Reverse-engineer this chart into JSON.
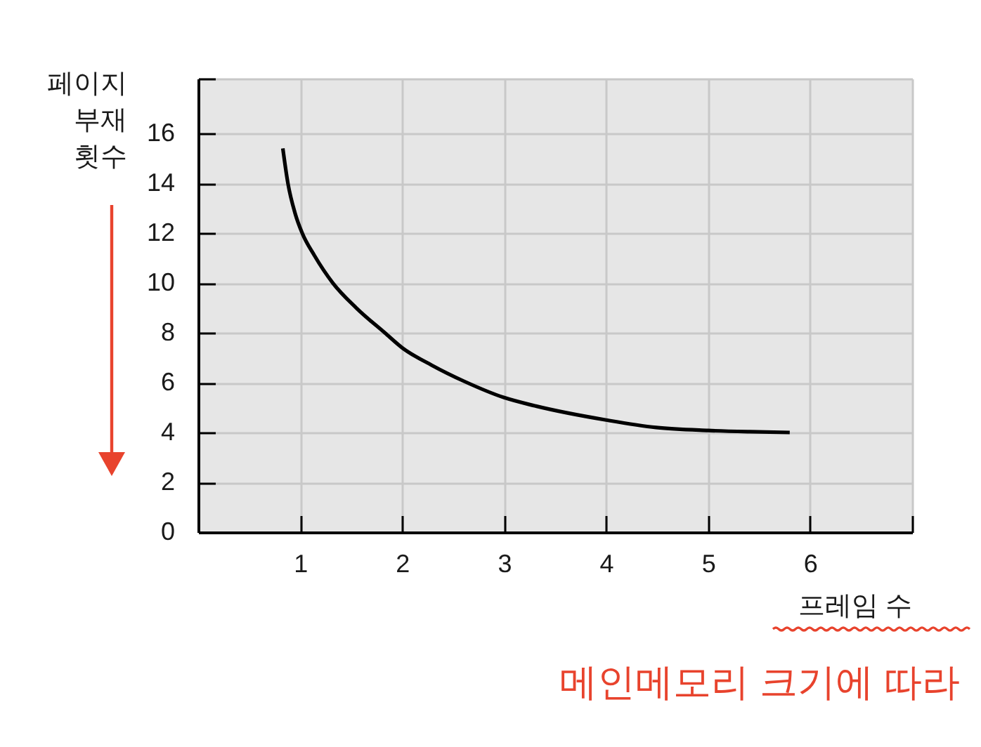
{
  "chart_data": {
    "type": "line",
    "xlabel": "프레임 수",
    "ylabel": "페이지 부재 횟수",
    "annotations": [
      "메인메모리 크기에 따라"
    ],
    "x": [
      0.83,
      0.88,
      0.95,
      1.02,
      1.14,
      1.32,
      1.55,
      1.83,
      2.0,
      2.29,
      2.61,
      3.0,
      3.3,
      4.0,
      4.49,
      5.0,
      5.41,
      5.8
    ],
    "values": [
      15.4,
      14.0,
      12.8,
      12.0,
      11.1,
      10.0,
      9.0,
      8.0,
      7.4,
      6.7,
      6.05,
      5.4,
      5.07,
      4.5,
      4.2,
      4.08,
      4.03,
      4.0
    ],
    "color": "#000000",
    "xlim": [
      0,
      7
    ],
    "ylim": [
      0,
      18.2
    ],
    "xticks": [
      1,
      2,
      3,
      4,
      5,
      6,
      {
        "value": 7,
        "label": null
      }
    ],
    "yticks": [
      0,
      2,
      4,
      6,
      8,
      10,
      12,
      14,
      16,
      {
        "value": 18.2,
        "label": null
      }
    ],
    "grid": true
  }
}
